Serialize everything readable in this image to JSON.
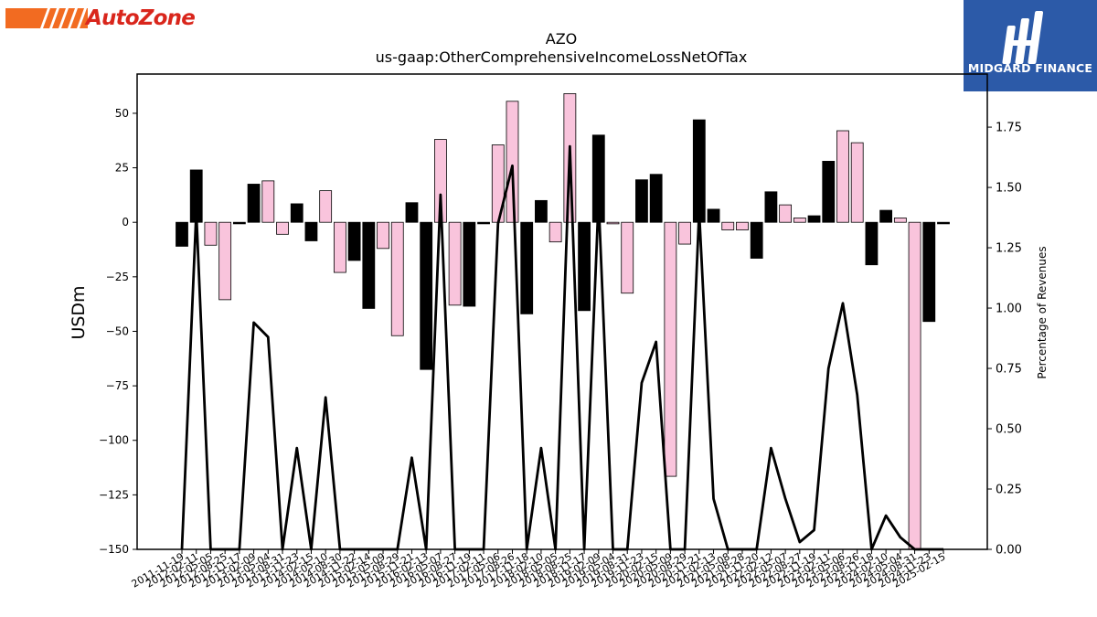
{
  "logos": {
    "left_brand": "AutoZone",
    "right_brand": "MIDGARD FINANCE"
  },
  "chart_data": {
    "type": "bar",
    "title": "AZO",
    "subtitle": "us-gaap:OtherComprehensiveIncomeLossNetOfTax",
    "ylabel": "USDm",
    "y2label": "Percentage of Revenues",
    "ylim": [
      -150,
      68
    ],
    "y2lim": [
      0,
      1.97
    ],
    "yticks": [
      50,
      25,
      0,
      -25,
      -50,
      -75,
      -100,
      -125,
      -150
    ],
    "y2ticks": [
      0.0,
      0.25,
      0.5,
      0.75,
      1.0,
      1.25,
      1.5,
      1.75
    ],
    "bar_colors": [
      "#000000",
      "#f9c4dc"
    ],
    "line_color": "#000000",
    "categories": [
      "2011-11-19",
      "2012-02-11",
      "2012-05-05",
      "2012-08-25",
      "2012-11-17",
      "2013-02-09",
      "2013-05-04",
      "2013-08-31",
      "2013-11-23",
      "2014-02-15",
      "2014-05-10",
      "2014-08-30",
      "2014-11-22",
      "2015-02-14",
      "2015-05-09",
      "2015-08-29",
      "2015-11-21",
      "2016-02-13",
      "2016-05-07",
      "2016-08-27",
      "2016-11-19",
      "2017-02-11",
      "2017-05-06",
      "2017-08-26",
      "2017-11-18",
      "2018-02-10",
      "2018-05-05",
      "2018-08-25",
      "2018-11-17",
      "2019-02-09",
      "2019-05-04",
      "2019-08-31",
      "2019-11-23",
      "2020-02-15",
      "2020-05-09",
      "2020-08-29",
      "2020-11-21",
      "2021-02-13",
      "2021-05-08",
      "2021-08-28",
      "2021-11-20",
      "2022-02-12",
      "2022-05-07",
      "2022-08-27",
      "2022-11-19",
      "2023-02-11",
      "2023-05-06",
      "2023-08-26",
      "2023-11-18",
      "2024-02-10",
      "2024-05-04",
      "2024-08-31",
      "2024-11-23",
      "2025-02-15"
    ],
    "tick_labels": [
      "2011-11-19",
      "2012-02-11",
      "2012-05-05",
      "2012-08-25",
      "2012-11-17",
      "2013-02-09",
      "2013-05-04",
      "2013-08-31",
      "2013-11-23",
      "2014-02-15",
      "2014-05-10",
      "2014-08-30",
      "2014-11-22",
      "2015-02-14",
      "2015-05-09",
      "2015-08-29",
      "2015-11-21",
      "2016-02-13",
      "2016-05-07",
      "2016-08-27",
      "2016-11-19",
      "2017-02-11",
      "2017-05-06",
      "2017-08-26",
      "2017-11-18",
      "2018-02-10",
      "2018-05-05",
      "2018-08-25",
      "2018-11-17",
      "2019-02-09",
      "2019-05-04",
      "2019-08-31",
      "2019-11-23",
      "2020-02-15",
      "2020-05-09",
      "2020-08-29",
      "2020-11-21",
      "2021-02-13",
      "2021-05-08",
      "2021-08-28",
      "2021-11-20",
      "2022-02-12",
      "2022-05-07",
      "2022-08-27",
      "2022-11-19",
      "2023-02-11",
      "2023-05-06",
      "2023-08-26",
      "2023-11-18",
      "2024-02-10",
      "2024-05-04",
      "2024-08-31",
      "2024-11-23",
      "2025-02-15"
    ],
    "values": [
      -11,
      24,
      -10.5,
      -35.5,
      -0.7,
      17.5,
      19,
      -5.5,
      8.5,
      -8.5,
      14.5,
      -23,
      -17.5,
      -39.5,
      -12,
      -52,
      9,
      -67.5,
      38,
      -38,
      -38.5,
      -0.7,
      35.5,
      55.5,
      -42,
      10,
      -9,
      59,
      -40.5,
      40,
      -0.7,
      -32.5,
      19.5,
      22,
      -116.5,
      -10,
      47,
      6,
      -3.5,
      -3.5,
      -16.5,
      14,
      8,
      2,
      3,
      28,
      42,
      36.5,
      -19.5,
      5.5,
      2,
      -150,
      -45.5,
      -0.7
    ],
    "bar_color_index": [
      0,
      0,
      1,
      1,
      0,
      0,
      1,
      1,
      0,
      0,
      1,
      1,
      0,
      0,
      1,
      1,
      0,
      0,
      1,
      1,
      0,
      0,
      1,
      1,
      0,
      0,
      1,
      1,
      0,
      0,
      1,
      1,
      0,
      0,
      1,
      1,
      0,
      0,
      1,
      1,
      0,
      0,
      1,
      1,
      0,
      0,
      1,
      1,
      0,
      0,
      1,
      1,
      0,
      0
    ],
    "pct_of_revenues": [
      0,
      1.4,
      0,
      0,
      0,
      0.94,
      0.88,
      0,
      0.42,
      0,
      0.63,
      0,
      0,
      0,
      0,
      0,
      0.38,
      0,
      1.47,
      0,
      0,
      0,
      1.35,
      1.59,
      0,
      0.42,
      0,
      1.67,
      0,
      1.45,
      0,
      0,
      0.69,
      0.86,
      0,
      0,
      1.4,
      0.21,
      0,
      0,
      0,
      0.42,
      0.21,
      0.03,
      0.08,
      0.75,
      1.02,
      0.64,
      0,
      0.14,
      0.05,
      0,
      0,
      0
    ]
  }
}
